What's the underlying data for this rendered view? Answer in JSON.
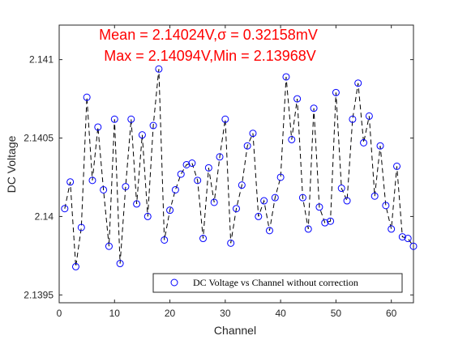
{
  "chart_data": {
    "type": "scatter",
    "title": "",
    "xlabel": "Channel",
    "ylabel": "DC Voltage",
    "xlim": [
      0,
      64
    ],
    "ylim": [
      2.13945,
      2.14122
    ],
    "x_ticks": [
      0,
      10,
      20,
      30,
      40,
      50,
      60
    ],
    "y_ticks": [
      2.1395,
      2.14,
      2.1405,
      2.141
    ],
    "y_tick_labels": [
      "2.1395",
      "2.14",
      "2.1405",
      "2.141"
    ],
    "grid": false,
    "legend_position": "bottom-right",
    "annotations": [
      {
        "text": "Mean = 2.14024V,σ = 0.32158mV",
        "color": "#ff0000"
      },
      {
        "text": "Max = 2.14094V,Min = 2.13968V",
        "color": "#ff0000"
      }
    ],
    "series": [
      {
        "name": "DC Voltage vs Channel without correction",
        "marker": "circle",
        "marker_color": "#0000ff",
        "line_color": "#000000",
        "line_style": "dashed",
        "x": [
          1,
          2,
          3,
          4,
          5,
          6,
          7,
          8,
          9,
          10,
          11,
          12,
          13,
          14,
          15,
          16,
          17,
          18,
          19,
          20,
          21,
          22,
          23,
          24,
          25,
          26,
          27,
          28,
          29,
          30,
          31,
          32,
          33,
          34,
          35,
          36,
          37,
          38,
          39,
          40,
          41,
          42,
          43,
          44,
          45,
          46,
          47,
          48,
          49,
          50,
          51,
          52,
          53,
          54,
          55,
          56,
          57,
          58,
          59,
          60,
          61,
          62,
          63,
          64
        ],
        "y": [
          2.14005,
          2.14022,
          2.13968,
          2.13993,
          2.14076,
          2.14023,
          2.14057,
          2.14017,
          2.13981,
          2.14062,
          2.1397,
          2.14019,
          2.14062,
          2.14008,
          2.14052,
          2.14,
          2.14058,
          2.14094,
          2.13985,
          2.14004,
          2.14017,
          2.14027,
          2.14033,
          2.14034,
          2.14023,
          2.13986,
          2.14031,
          2.14009,
          2.14038,
          2.14062,
          2.13983,
          2.14005,
          2.1402,
          2.14045,
          2.14053,
          2.14,
          2.1401,
          2.13991,
          2.14012,
          2.14025,
          2.14089,
          2.14049,
          2.14075,
          2.14012,
          2.13992,
          2.14069,
          2.14006,
          2.13996,
          2.13997,
          2.14079,
          2.14018,
          2.1401,
          2.14062,
          2.14085,
          2.14047,
          2.14064,
          2.14013,
          2.14045,
          2.14007,
          2.13992,
          2.14032,
          2.13987,
          2.13986,
          2.13981
        ]
      }
    ]
  }
}
